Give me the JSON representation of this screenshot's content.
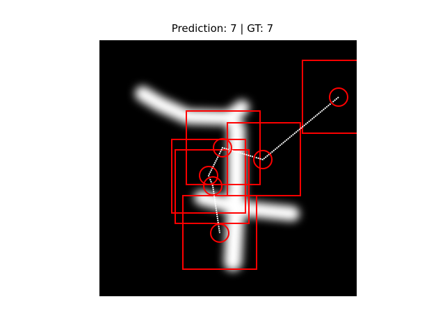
{
  "figure": {
    "title": "Prediction: 7 | GT: 7",
    "prediction": "7",
    "ground_truth": "7",
    "colors": {
      "background": "#ffffff",
      "image_background": "#000000",
      "digit_stroke": "#ffffff",
      "glimpse_box": "#ff0000",
      "glimpse_circle": "#ff0000",
      "trajectory": "#ffffff"
    }
  }
}
